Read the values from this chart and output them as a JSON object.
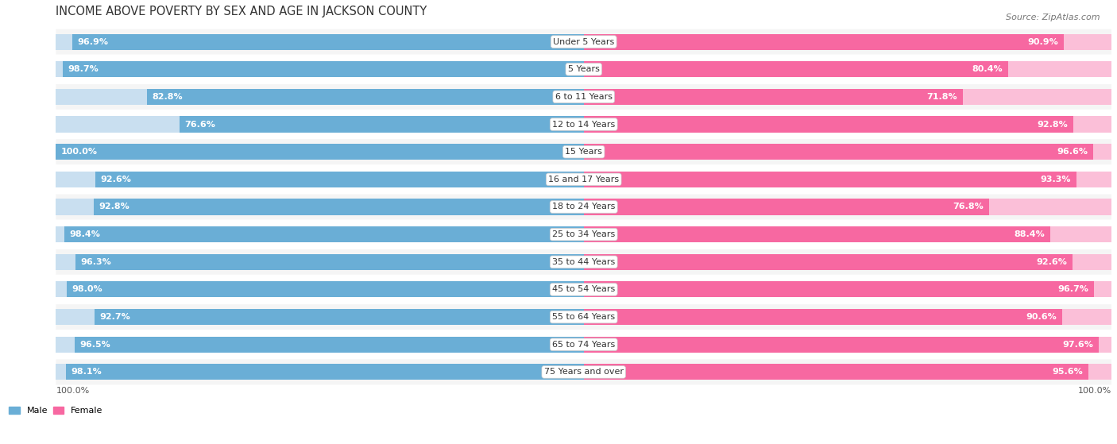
{
  "title": "INCOME ABOVE POVERTY BY SEX AND AGE IN JACKSON COUNTY",
  "source": "Source: ZipAtlas.com",
  "categories": [
    "Under 5 Years",
    "5 Years",
    "6 to 11 Years",
    "12 to 14 Years",
    "15 Years",
    "16 and 17 Years",
    "18 to 24 Years",
    "25 to 34 Years",
    "35 to 44 Years",
    "45 to 54 Years",
    "55 to 64 Years",
    "65 to 74 Years",
    "75 Years and over"
  ],
  "male": [
    96.9,
    98.7,
    82.8,
    76.6,
    100.0,
    92.6,
    92.8,
    98.4,
    96.3,
    98.0,
    92.7,
    96.5,
    98.1
  ],
  "female": [
    90.9,
    80.4,
    71.8,
    92.8,
    96.6,
    93.3,
    76.8,
    88.4,
    92.6,
    96.7,
    90.6,
    97.6,
    95.6
  ],
  "male_color": "#6aaed6",
  "male_color_light": "#c9dff0",
  "female_color": "#f768a1",
  "female_color_light": "#fbbfd8",
  "row_color_odd": "#f5f5f5",
  "row_color_even": "#ffffff",
  "max_value": 100.0,
  "title_fontsize": 10.5,
  "label_fontsize": 8.0,
  "value_fontsize": 8.0,
  "source_fontsize": 8.0
}
